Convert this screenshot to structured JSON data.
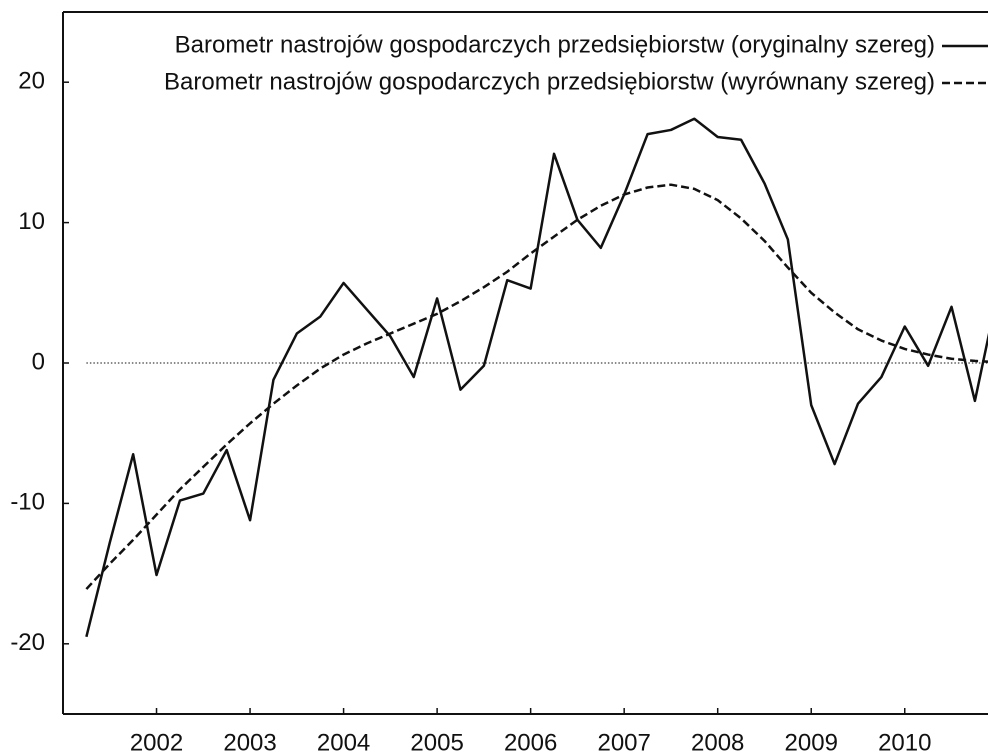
{
  "chart_data": {
    "type": "line",
    "x": [
      2001.25,
      2001.5,
      2001.75,
      2002,
      2002.25,
      2002.5,
      2002.75,
      2003,
      2003.25,
      2003.5,
      2003.75,
      2004,
      2004.25,
      2004.5,
      2004.75,
      2005,
      2005.25,
      2005.5,
      2005.75,
      2006,
      2006.25,
      2006.5,
      2006.75,
      2007,
      2007.25,
      2007.5,
      2007.75,
      2008,
      2008.25,
      2008.5,
      2008.75,
      2009,
      2009.25,
      2009.5,
      2009.75,
      2010,
      2010.25,
      2010.5,
      2010.75,
      2011
    ],
    "series": [
      {
        "name": "Barometr nastrojów gospodarczych przedsiębiorstw (oryginalny szereg)",
        "color": "#111111",
        "dash": "solid",
        "values": [
          -19.5,
          -12.8,
          -6.5,
          -15.1,
          -9.8,
          -9.3,
          -6.2,
          -11.2,
          -1.2,
          2.1,
          3.3,
          5.7,
          3.8,
          1.9,
          -1.0,
          4.6,
          -1.9,
          -0.2,
          5.9,
          5.3,
          14.9,
          10.2,
          8.2,
          12.0,
          16.3,
          16.6,
          17.4,
          16.1,
          15.9,
          12.8,
          8.8,
          -3.0,
          -7.2,
          -2.9,
          -1.0,
          2.6,
          -0.2,
          4.0,
          -2.7,
          5.2
        ]
      },
      {
        "name": "Barometr nastrojów gospodarczych przedsiębiorstw (wyrównany szereg)",
        "color": "#111111",
        "dash": "dashed",
        "values": [
          -16.1,
          -14.3,
          -12.6,
          -10.8,
          -9.0,
          -7.4,
          -5.8,
          -4.3,
          -2.9,
          -1.6,
          -0.4,
          0.6,
          1.4,
          2.1,
          2.8,
          3.5,
          4.4,
          5.4,
          6.5,
          7.8,
          9.0,
          10.2,
          11.2,
          12.0,
          12.5,
          12.7,
          12.4,
          11.6,
          10.3,
          8.7,
          6.8,
          5.0,
          3.6,
          2.4,
          1.6,
          1.0,
          0.6,
          0.3,
          0.15,
          0.05
        ]
      }
    ],
    "xlim": [
      2001,
      2010.89
    ],
    "xticks": [
      2002,
      2003,
      2004,
      2005,
      2006,
      2007,
      2008,
      2009,
      2010
    ],
    "ylim": [
      -25,
      25
    ],
    "yticks": [
      -20,
      -10,
      0,
      10,
      20
    ],
    "zero_line": true,
    "legend": "top-right"
  }
}
